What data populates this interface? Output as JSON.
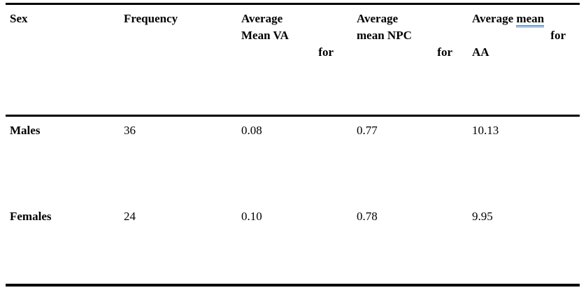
{
  "table": {
    "border_color": "#000000",
    "grammar_underline_color": "#2e74b5",
    "header": {
      "col1": "Sex",
      "col2": "Frequency",
      "col3": {
        "line1": "Average",
        "line2": "Mean VA",
        "for_label": "for"
      },
      "col4": {
        "line1": "Average",
        "line2": "mean NPC",
        "for_label": "for"
      },
      "col5": {
        "line1_text": "Average",
        "line1_underlined": "mean",
        "for_label": "for",
        "line3": "AA"
      }
    },
    "rows": [
      {
        "sex": "Males",
        "frequency": "36",
        "mean_va": "0.08",
        "mean_npc": "0.77",
        "mean_aa": "10.13"
      },
      {
        "sex": "Females",
        "frequency": "24",
        "mean_va": "0.10",
        "mean_npc": "0.78",
        "mean_aa": "9.95"
      }
    ]
  }
}
